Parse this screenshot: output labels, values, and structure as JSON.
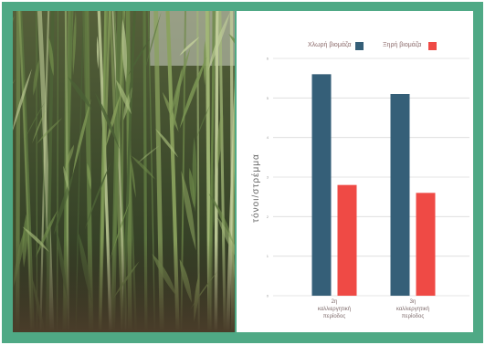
{
  "chart_data": {
    "type": "bar",
    "categories": [
      "2η καλλιεργητική περίοδος",
      "3η καλλιεργητική περίοδος"
    ],
    "category_lines": [
      [
        "2η",
        "καλλιεργητική",
        "περίοδος"
      ],
      [
        "3η",
        "καλλιεργητική",
        "περίοδος"
      ]
    ],
    "series": [
      {
        "name": "Χλωρή βιομάζα",
        "values": [
          5.6,
          5.1
        ],
        "color": "#355f78"
      },
      {
        "name": "Ξηρή βιομάζα",
        "values": [
          2.8,
          2.6
        ],
        "color": "#ef4a45"
      }
    ],
    "ylabel": "τόνοι/στρέμμα",
    "ylim": [
      0,
      6
    ],
    "yticks": [
      0,
      1,
      2,
      3,
      4,
      5,
      6
    ],
    "grid": true,
    "legend_position": "top"
  },
  "colors": {
    "frame": "#4fa985",
    "gridline": "#dcdcdc"
  }
}
